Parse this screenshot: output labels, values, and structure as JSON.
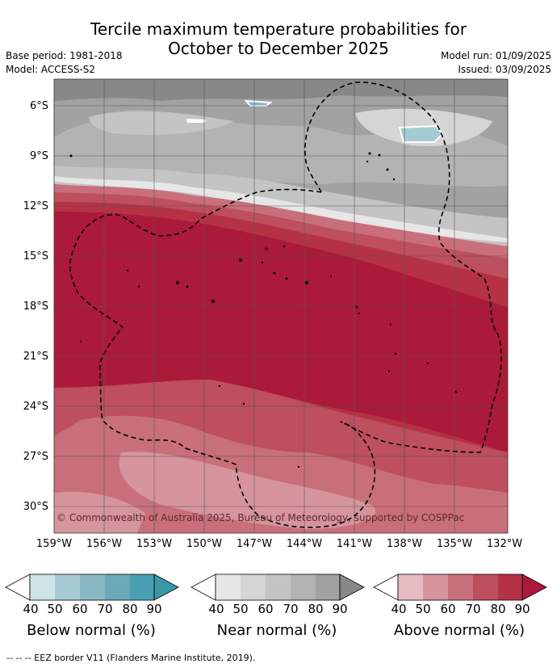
{
  "header": {
    "title_line1": "Tercile maximum temperature probabilities for",
    "title_line2": "October to December 2025",
    "base_period": "Base period: 1981-2018",
    "model": "Model: ACCESS-S2",
    "model_run": "Model run: 01/09/2025",
    "issued": "Issued: 03/09/2025"
  },
  "map": {
    "lat_labels": [
      "6°S",
      "9°S",
      "12°S",
      "15°S",
      "18°S",
      "21°S",
      "24°S",
      "27°S",
      "30°S"
    ],
    "lon_labels": [
      "159°W",
      "156°W",
      "153°W",
      "150°W",
      "147°W",
      "144°W",
      "141°W",
      "138°W",
      "135°W",
      "132°W"
    ],
    "copyright": "© Commonwealth of Australia 2025, Bureau of Meteorology, supported by COSPPac"
  },
  "colorbars": [
    {
      "title": "Below normal (%)",
      "ticks": [
        "40",
        "50",
        "60",
        "70",
        "80",
        "90"
      ],
      "colors": [
        "#cde3e8",
        "#a7cbd3",
        "#88b7c3",
        "#6aa9b8",
        "#49a0b3",
        "#3b96a8"
      ]
    },
    {
      "title": "Near normal (%)",
      "ticks": [
        "40",
        "50",
        "60",
        "70",
        "80",
        "90"
      ],
      "colors": [
        "#e6e6e6",
        "#d5d5d5",
        "#c4c4c4",
        "#b3b3b3",
        "#a2a2a2",
        "#888888"
      ]
    },
    {
      "title": "Above normal (%)",
      "ticks": [
        "40",
        "50",
        "60",
        "70",
        "80",
        "90"
      ],
      "colors": [
        "#e5bcc2",
        "#d6959d",
        "#c96f7b",
        "#bd4f5e",
        "#b53245",
        "#ab1a3a"
      ]
    }
  ],
  "footer": "--  --  -- EEZ border V11 (Flanders Marine Institute, 2019)."
}
